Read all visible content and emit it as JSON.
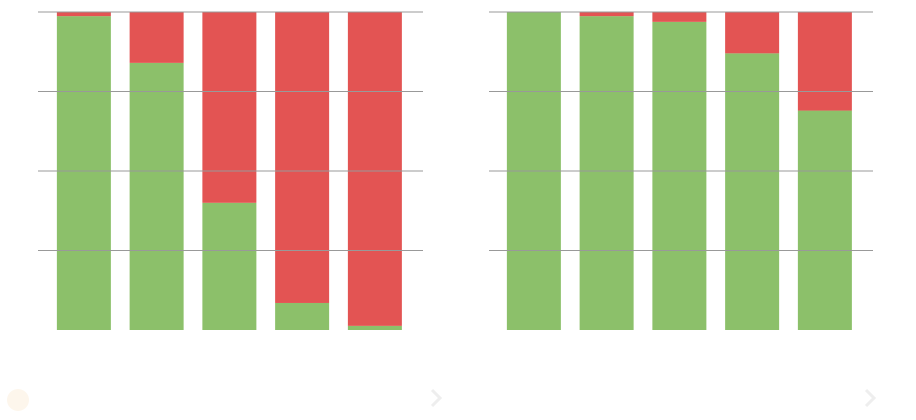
{
  "chart_data": [
    {
      "type": "bar",
      "stacked": true,
      "categories": [
        null,
        null,
        null,
        null,
        null
      ],
      "series": [
        {
          "color": "#8cc06a",
          "values": [
            0.987,
            0.84,
            0.4,
            0.085,
            0.013
          ]
        },
        {
          "color": "#e35453",
          "values": [
            0.013,
            0.16,
            0.6,
            0.915,
            0.987
          ]
        }
      ],
      "ylim": [
        0,
        1
      ],
      "yticks": [
        0,
        0.25,
        0.5,
        0.75,
        1
      ],
      "grid": true
    },
    {
      "type": "bar",
      "stacked": true,
      "categories": [
        null,
        null,
        null,
        null,
        null
      ],
      "series": [
        {
          "color": "#8cc06a",
          "values": [
            1,
            0.987,
            0.969,
            0.87,
            0.69
          ]
        },
        {
          "color": "#e35453",
          "values": [
            0,
            0.013,
            0.031,
            0.13,
            0.31
          ]
        }
      ],
      "ylim": [
        0,
        1
      ],
      "yticks": [
        0,
        0.25,
        0.5,
        0.75,
        1
      ],
      "grid": true
    }
  ]
}
